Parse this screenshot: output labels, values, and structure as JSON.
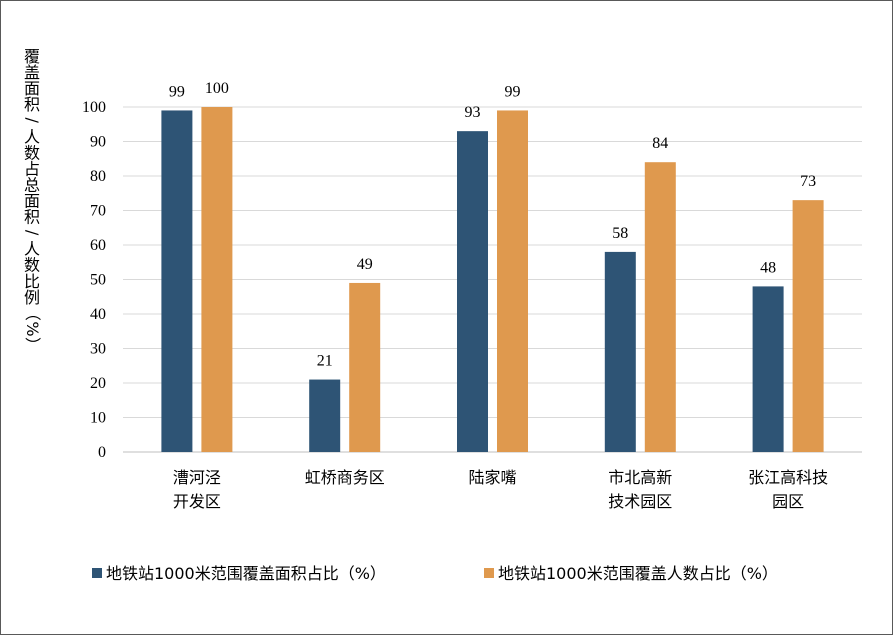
{
  "chart_data": {
    "type": "bar",
    "ylabel": "覆盖面积/人数占总面积/人数比例（%）",
    "ylim": [
      0,
      100
    ],
    "yticks": [
      0,
      10,
      20,
      30,
      40,
      50,
      60,
      70,
      80,
      90,
      100
    ],
    "grid": true,
    "legend_position": "bottom",
    "categories": [
      [
        "漕河泾",
        "开发区"
      ],
      [
        "虹桥商务区"
      ],
      [
        "陆家嘴"
      ],
      [
        "市北高新",
        "技术园区"
      ],
      [
        "张江高科技",
        "园区"
      ]
    ],
    "series": [
      {
        "name": "地铁站1000米范围覆盖面积占比（%）",
        "color": "#2e5475",
        "values": [
          99,
          21,
          93,
          58,
          48
        ]
      },
      {
        "name": "地铁站1000米范围覆盖人数占比（%）",
        "color": "#df994e",
        "values": [
          100,
          49,
          99,
          84,
          73
        ]
      }
    ]
  }
}
